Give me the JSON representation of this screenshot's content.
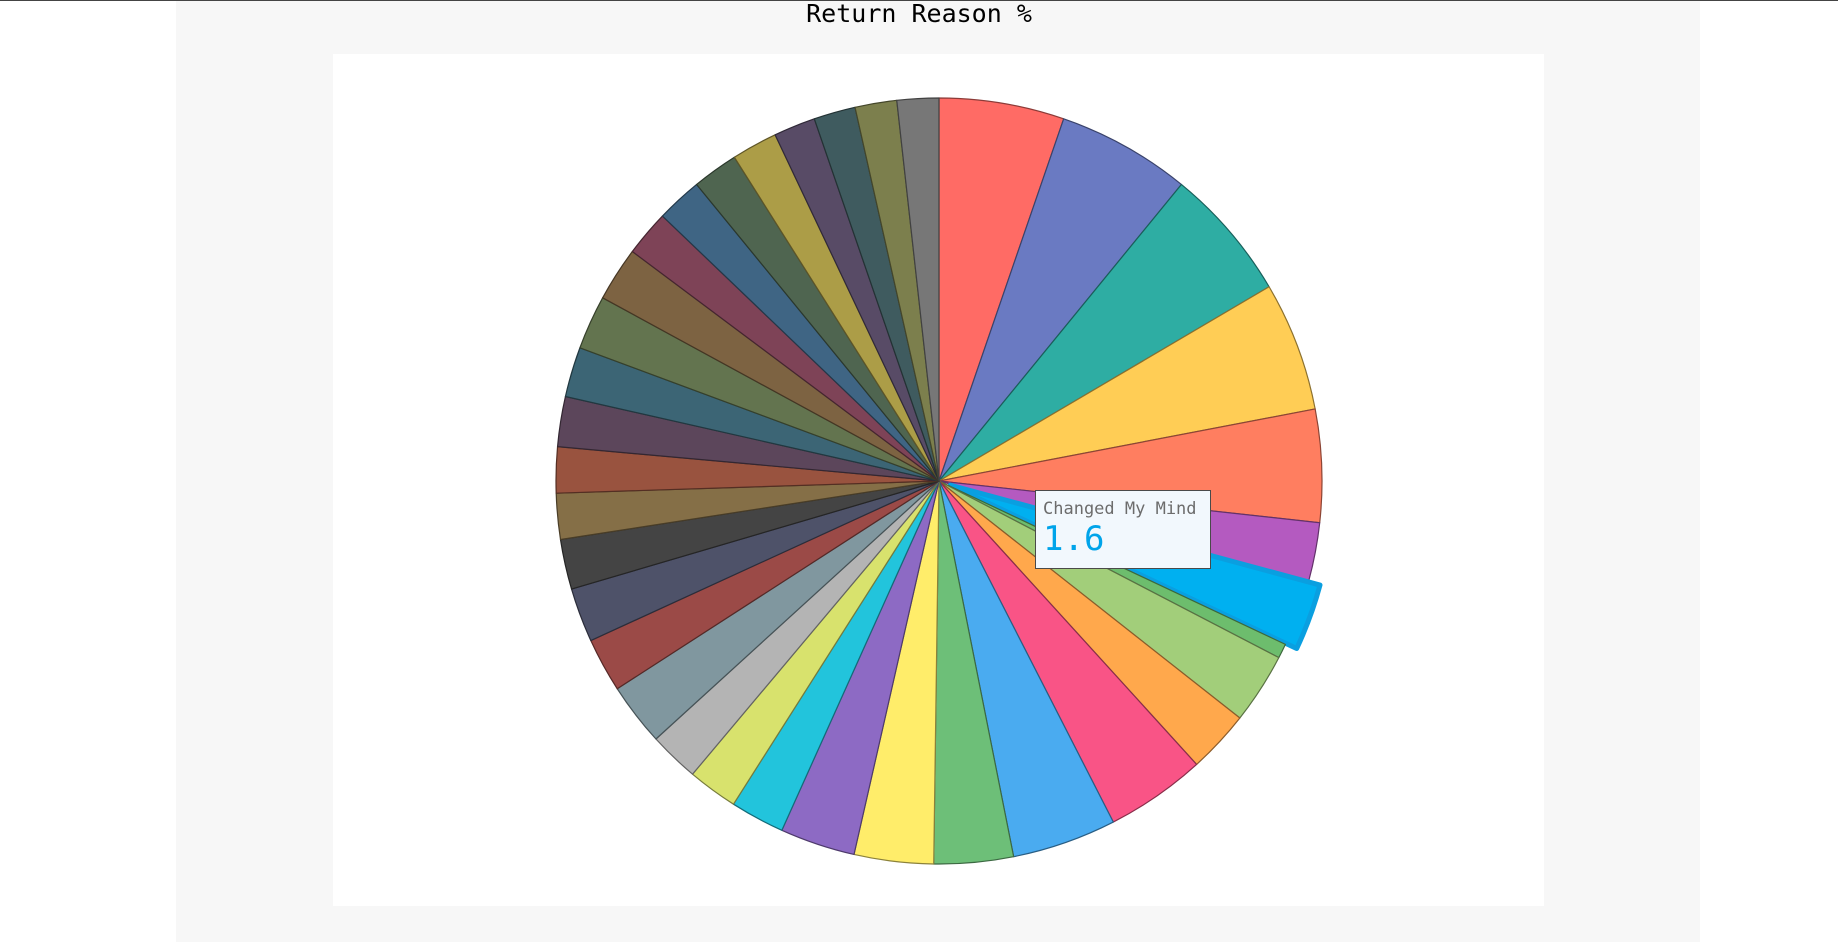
{
  "chart_data": {
    "type": "pie",
    "title": "Return Reason %",
    "highlighted": {
      "label": "Changed My Mind",
      "value": "1.6"
    },
    "slices": [
      {
        "value": 3.0,
        "color": "#ff6b65"
      },
      {
        "value": 3.2,
        "color": "#6a7ac2"
      },
      {
        "value": 3.2,
        "color": "#2eada3"
      },
      {
        "value": 3.1,
        "color": "#ffcd55"
      },
      {
        "value": 2.7,
        "color": "#ff7e60"
      },
      {
        "value": 1.4,
        "color": "#b45ac0"
      },
      {
        "label": "Changed My Mind",
        "value": 1.6,
        "color": "#00b0f0",
        "highlighted": true
      },
      {
        "value": 0.35,
        "color": "#6dbd6d"
      },
      {
        "value": 1.7,
        "color": "#a2ce7a"
      },
      {
        "value": 1.5,
        "color": "#ffa84c"
      },
      {
        "value": 2.4,
        "color": "#f95486"
      },
      {
        "value": 2.5,
        "color": "#4aabf0"
      },
      {
        "value": 1.9,
        "color": "#6dbf78"
      },
      {
        "value": 1.9,
        "color": "#ffed6a"
      },
      {
        "value": 1.8,
        "color": "#8d6ac4"
      },
      {
        "value": 1.3,
        "color": "#22c4dc"
      },
      {
        "value": 1.2,
        "color": "#d8e26d"
      },
      {
        "value": 1.2,
        "color": "#b4b4b4"
      },
      {
        "value": 1.5,
        "color": "#80979f"
      },
      {
        "value": 1.3,
        "color": "#9b4a47"
      },
      {
        "value": 1.3,
        "color": "#4e5269"
      },
      {
        "value": 1.2,
        "color": "#444444"
      },
      {
        "value": 1.1,
        "color": "#856f47"
      },
      {
        "value": 1.1,
        "color": "#99533f"
      },
      {
        "value": 1.2,
        "color": "#5c465b"
      },
      {
        "value": 1.2,
        "color": "#3c6575"
      },
      {
        "value": 1.3,
        "color": "#63744f"
      },
      {
        "value": 1.3,
        "color": "#7d6342"
      },
      {
        "value": 1.1,
        "color": "#7e4357"
      },
      {
        "value": 1.1,
        "color": "#3f6584"
      },
      {
        "value": 1.1,
        "color": "#4f6550"
      },
      {
        "value": 1.1,
        "color": "#ac9d47"
      },
      {
        "value": 1.0,
        "color": "#584b66"
      },
      {
        "value": 1.0,
        "color": "#3f5b5f"
      },
      {
        "value": 1.0,
        "color": "#7c7f4d"
      },
      {
        "value": 1.0,
        "color": "#777777"
      }
    ]
  }
}
